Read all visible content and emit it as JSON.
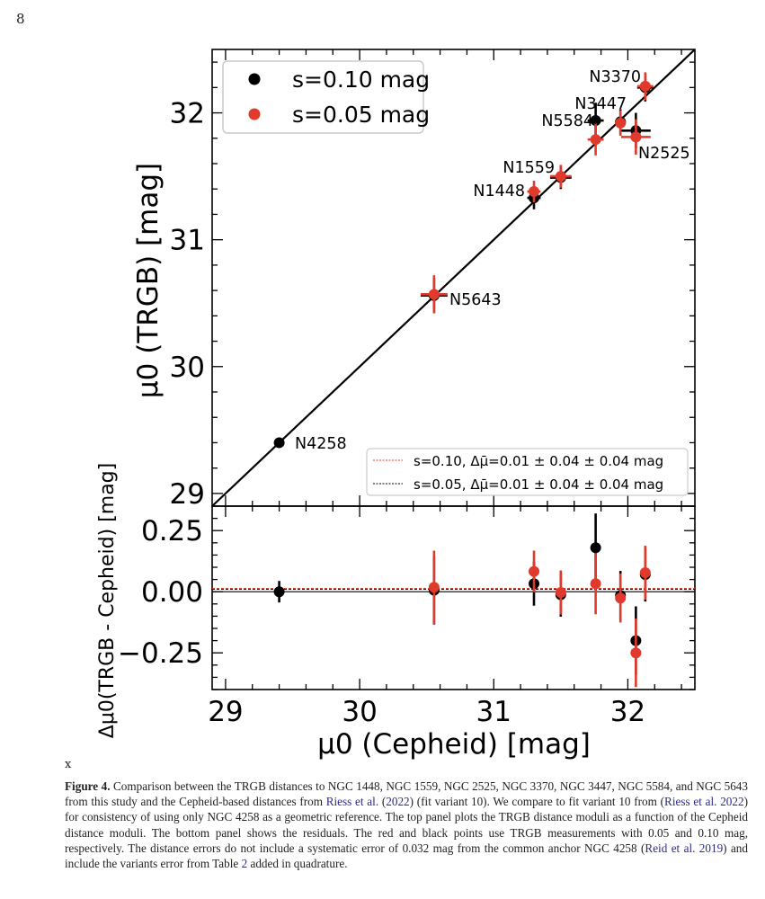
{
  "page_number": "8",
  "stray_mark": "x",
  "caption": {
    "label": "Figure 4.",
    "t1": " Comparison between the TRGB distances to NGC 1448, NGC 1559, NGC 2525, NGC 3370, NGC 3447, NGC 5584, and NGC 5643 from this study and the Cepheid-based distances from ",
    "c1": "Riess et al.",
    "t2": " (",
    "c2": "2022",
    "t3": ") (fit variant 10). We compare to fit variant 10 from (",
    "c3": "Riess et al. 2022",
    "t4": ") for consistency of using only NGC 4258 as a geometric reference. The top panel plots the TRGB distance moduli as a function of the Cepheid distance moduli. The bottom panel shows the residuals. The red and black points use TRGB measurements with 0.05 and 0.10 mag, respectively. The distance errors do not include a systematic error of 0.032 mag from the common anchor NGC 4258 (",
    "c4": "Reid et al. 2019",
    "t5": ") and include the variants error from Table ",
    "c5": "2",
    "t6": " added in quadrature."
  },
  "chart_data": [
    {
      "type": "scatter",
      "panel": "top",
      "xlabel": "μ0 (Cepheid) [mag]",
      "ylabel": "μ0 (TRGB) [mag]",
      "xlim": [
        28.9,
        32.5
      ],
      "ylim": [
        28.9,
        32.5
      ],
      "xticks": [
        "29",
        "30",
        "31",
        "32"
      ],
      "yticks": [
        "29",
        "30",
        "31",
        "32"
      ],
      "grid": false,
      "reference_line": "y = x",
      "legend_placement": "top-left",
      "series": [
        {
          "name": "s=0.10 mag",
          "color": "#000000",
          "points": [
            {
              "label": "N4258",
              "x": 29.4,
              "y": 29.4,
              "xerr": 0.02,
              "yerr": 0.04
            },
            {
              "label": "N5643",
              "x": 30.555,
              "y": 30.56,
              "xerr": 0.1,
              "yerr": 0.14
            },
            {
              "label": "N1448",
              "x": 31.3,
              "y": 31.33,
              "xerr": 0.05,
              "yerr": 0.09
            },
            {
              "label": "N1559",
              "x": 31.5,
              "y": 31.49,
              "xerr": 0.08,
              "yerr": 0.09
            },
            {
              "label": "N5584",
              "x": 31.76,
              "y": 31.94,
              "xerr": 0.06,
              "yerr": 0.14
            },
            {
              "label": "N3447",
              "x": 31.945,
              "y": 31.93,
              "xerr": 0.04,
              "yerr": 0.1
            },
            {
              "label": "N2525",
              "x": 32.06,
              "y": 31.86,
              "xerr": 0.11,
              "yerr": 0.14
            },
            {
              "label": "N3370",
              "x": 32.13,
              "y": 32.2,
              "xerr": 0.06,
              "yerr": 0.11
            }
          ]
        },
        {
          "name": "s=0.05 mag",
          "color": "#e03a2c",
          "points": [
            {
              "label": "N5643",
              "x": 30.555,
              "y": 30.57,
              "xerr": 0.1,
              "yerr": 0.15
            },
            {
              "label": "N1448",
              "x": 31.3,
              "y": 31.38,
              "xerr": 0.05,
              "yerr": 0.085
            },
            {
              "label": "N1559",
              "x": 31.5,
              "y": 31.5,
              "xerr": 0.08,
              "yerr": 0.09
            },
            {
              "label": "N5584",
              "x": 31.76,
              "y": 31.79,
              "xerr": 0.06,
              "yerr": 0.125
            },
            {
              "label": "N3447",
              "x": 31.945,
              "y": 31.92,
              "xerr": 0.04,
              "yerr": 0.1
            },
            {
              "label": "N2525",
              "x": 32.06,
              "y": 31.81,
              "xerr": 0.11,
              "yerr": 0.14
            },
            {
              "label": "N3370",
              "x": 32.13,
              "y": 32.21,
              "xerr": 0.06,
              "yerr": 0.11
            }
          ]
        }
      ],
      "galaxy_labels": [
        "N4258",
        "N5643",
        "N1448",
        "N1559",
        "N5584",
        "N3447",
        "N2525",
        "N3370"
      ]
    },
    {
      "type": "scatter",
      "panel": "bottom",
      "xlabel": "μ0 (Cepheid) [mag]",
      "ylabel": "Δμ0(TRGB - Cepheid) [mag]",
      "xlim": [
        28.9,
        32.5
      ],
      "ylim": [
        -0.4,
        0.35
      ],
      "xticks": [
        "29",
        "30",
        "31",
        "32"
      ],
      "yticks": [
        "0.25",
        "0.00",
        "−0.25"
      ],
      "ytick_values": [
        0.25,
        0.0,
        -0.25
      ],
      "grid": false,
      "legend_placement": "top-right of bottom panel (inside top panel)",
      "mean_lines": [
        {
          "name": "s=0.10, Δμ̄=0.01 ± 0.04 ± 0.04 mag",
          "value": 0.01,
          "color": "#e03a2c",
          "style": "dashed"
        },
        {
          "name": "s=0.05, Δμ̄=0.01 ± 0.04 ± 0.04 mag",
          "value": 0.01,
          "color": "#000000",
          "style": "dashed"
        }
      ],
      "zero_line": 0.0,
      "series": [
        {
          "color": "#000000",
          "points": [
            {
              "x": 29.4,
              "y": 0.0,
              "yerr": 0.044
            },
            {
              "x": 30.555,
              "y": 0.006,
              "yerr": 0.14
            },
            {
              "x": 31.3,
              "y": 0.033,
              "yerr": 0.09
            },
            {
              "x": 31.5,
              "y": -0.012,
              "yerr": 0.09
            },
            {
              "x": 31.76,
              "y": 0.18,
              "yerr": 0.14
            },
            {
              "x": 31.945,
              "y": -0.015,
              "yerr": 0.1
            },
            {
              "x": 32.06,
              "y": -0.2,
              "yerr": 0.14
            },
            {
              "x": 32.13,
              "y": 0.07,
              "yerr": 0.11
            }
          ]
        },
        {
          "color": "#e03a2c",
          "points": [
            {
              "x": 30.555,
              "y": 0.018,
              "yerr": 0.15
            },
            {
              "x": 31.3,
              "y": 0.083,
              "yerr": 0.085
            },
            {
              "x": 31.5,
              "y": -0.003,
              "yerr": 0.09
            },
            {
              "x": 31.76,
              "y": 0.033,
              "yerr": 0.125
            },
            {
              "x": 31.945,
              "y": -0.026,
              "yerr": 0.1
            },
            {
              "x": 32.06,
              "y": -0.25,
              "yerr": 0.14
            },
            {
              "x": 32.13,
              "y": 0.078,
              "yerr": 0.11
            }
          ]
        }
      ]
    }
  ]
}
